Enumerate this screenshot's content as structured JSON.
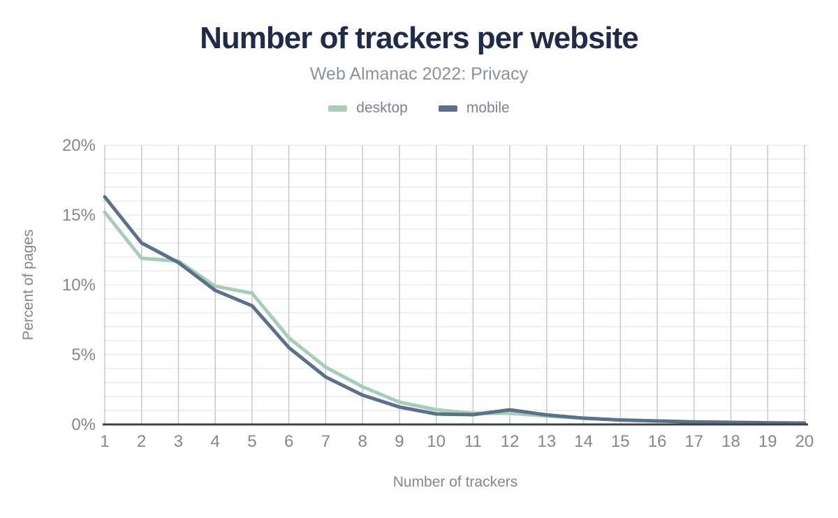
{
  "header": {
    "title": "Number of trackers per website",
    "subtitle": "Web Almanac 2022: Privacy"
  },
  "chart_data": {
    "type": "line",
    "title": "Number of trackers per website",
    "subtitle": "Web Almanac 2022: Privacy",
    "xlabel": "Number of trackers",
    "ylabel": "Percent of pages",
    "x": [
      1,
      2,
      3,
      4,
      5,
      6,
      7,
      8,
      9,
      10,
      11,
      12,
      13,
      14,
      15,
      16,
      17,
      18,
      19,
      20
    ],
    "series": [
      {
        "name": "desktop",
        "color": "#a6cdb8",
        "values": [
          15.2,
          11.9,
          11.7,
          9.9,
          9.4,
          6.2,
          4.1,
          2.7,
          1.6,
          1.05,
          0.8,
          0.8,
          0.6,
          0.45,
          0.32,
          0.25,
          0.18,
          0.15,
          0.12,
          0.1
        ]
      },
      {
        "name": "mobile",
        "color": "#5b7089",
        "values": [
          16.3,
          13.0,
          11.6,
          9.6,
          8.5,
          5.5,
          3.4,
          2.1,
          1.25,
          0.75,
          0.7,
          1.05,
          0.68,
          0.45,
          0.32,
          0.25,
          0.18,
          0.15,
          0.12,
          0.1
        ]
      }
    ],
    "ylim": [
      0,
      20
    ],
    "ytick_values": [
      0,
      5,
      10,
      15,
      20
    ],
    "ytick_labels": [
      "0%",
      "5%",
      "10%",
      "15%",
      "20%"
    ],
    "grid": "both",
    "legend_position": "top",
    "colors": {
      "title": "#1e2b49",
      "subtitle_text": "#8b9299",
      "axis_text": "#82878d",
      "vertical_grid": "#c9c9c9",
      "horizontal_grid": "#ebebeb",
      "axis_line": "#3b424c"
    }
  }
}
